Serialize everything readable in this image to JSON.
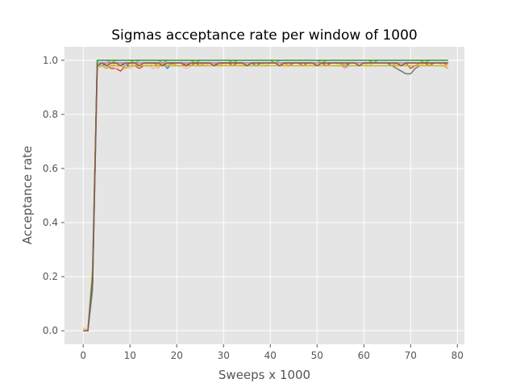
{
  "chart_data": {
    "type": "line",
    "title": "Sigmas acceptance rate per window of 1000",
    "xlabel": "Sweeps x 1000",
    "ylabel": "Acceptance rate",
    "xlim": [
      -4,
      81.5
    ],
    "ylim": [
      -0.05,
      1.05
    ],
    "xticks": [
      "0",
      "10",
      "20",
      "30",
      "40",
      "50",
      "60",
      "70",
      "80"
    ],
    "yticks": [
      "0.0",
      "0.2",
      "0.4",
      "0.6",
      "0.8",
      "1.0"
    ],
    "grid": true,
    "style": "ggplot",
    "colors": [
      "#E24A33",
      "#348ABD",
      "#988ED5",
      "#777777",
      "#FBC15E",
      "#8EBA42",
      "#FFB5B8",
      "#17BECF",
      "#BCBD22",
      "#E377C2",
      "#2CA02C",
      "#8C564B"
    ],
    "x": [
      0,
      1,
      2,
      3,
      4,
      5,
      6,
      7,
      8,
      9,
      10,
      11,
      12,
      13,
      14,
      15,
      16,
      17,
      18,
      19,
      20,
      21,
      22,
      23,
      24,
      25,
      26,
      27,
      28,
      29,
      30,
      31,
      32,
      33,
      34,
      35,
      36,
      37,
      38,
      39,
      40,
      41,
      42,
      43,
      44,
      45,
      46,
      47,
      48,
      49,
      50,
      51,
      52,
      53,
      54,
      55,
      56,
      57,
      58,
      59,
      60,
      61,
      62,
      63,
      64,
      65,
      66,
      67,
      68,
      69,
      70,
      71,
      72,
      73,
      74,
      75,
      76,
      77,
      78
    ],
    "series": [
      {
        "values": [
          0.01,
          0.0,
          0.17,
          0.97,
          0.98,
          0.98,
          0.97,
          0.97,
          0.96,
          0.98,
          0.98,
          0.98,
          0.97,
          0.98,
          0.98,
          0.99,
          0.98,
          0.98,
          0.98,
          0.99,
          0.98,
          0.98,
          0.99,
          0.98,
          0.99,
          0.98,
          0.99,
          0.99,
          0.99,
          0.98,
          0.99,
          0.99,
          0.98,
          0.99,
          0.99,
          0.98,
          0.99,
          0.99,
          0.99,
          0.98,
          0.99,
          0.99,
          0.99,
          0.99,
          0.98,
          0.99,
          0.99,
          0.98,
          0.99,
          0.99,
          0.99,
          0.99,
          0.98,
          0.99,
          0.99,
          0.99,
          0.98,
          0.99,
          0.99,
          0.99,
          0.99,
          0.98,
          0.99,
          0.99,
          0.99,
          0.99,
          0.98,
          0.99,
          0.98,
          0.99,
          0.97,
          0.98,
          0.99,
          0.99,
          0.98,
          0.99,
          0.99,
          0.99,
          0.98
        ]
      },
      {
        "values": [
          0.0,
          0.0,
          0.15,
          0.98,
          0.98,
          0.99,
          0.98,
          0.99,
          0.99,
          0.98,
          0.99,
          0.98,
          0.99,
          0.99,
          0.99,
          0.99,
          0.99,
          0.99,
          0.97,
          0.99,
          0.99,
          0.99,
          0.99,
          0.99,
          0.99,
          0.99,
          0.98,
          0.99,
          0.99,
          0.99,
          0.99,
          0.99,
          0.99,
          0.99,
          0.99,
          0.99,
          0.99,
          0.98,
          0.99,
          0.99,
          0.99,
          0.99,
          0.99,
          0.99,
          0.99,
          0.99,
          0.99,
          0.99,
          0.99,
          0.99,
          0.99,
          0.99,
          0.99,
          0.99,
          0.99,
          0.99,
          0.97,
          0.99,
          0.99,
          0.99,
          0.99,
          0.99,
          0.99,
          0.99,
          0.99,
          0.99,
          0.99,
          0.99,
          0.99,
          0.99,
          0.99,
          0.99,
          0.98,
          0.99,
          0.99,
          0.99,
          0.99,
          0.99,
          0.99
        ]
      },
      {
        "values": [
          0.0,
          0.0,
          0.22,
          0.99,
          0.99,
          0.99,
          0.99,
          0.99,
          0.99,
          0.99,
          0.99,
          0.99,
          0.99,
          0.99,
          0.99,
          0.99,
          0.99,
          0.99,
          0.99,
          0.99,
          0.99,
          0.99,
          0.99,
          0.99,
          0.99,
          0.99,
          0.99,
          0.99,
          0.99,
          0.99,
          0.99,
          0.99,
          0.99,
          0.99,
          0.99,
          0.99,
          0.99,
          0.99,
          0.99,
          0.99,
          0.99,
          0.99,
          0.99,
          0.99,
          0.99,
          0.99,
          0.99,
          0.99,
          0.99,
          0.99,
          0.99,
          0.99,
          0.99,
          0.99,
          0.99,
          0.99,
          0.99,
          0.99,
          0.99,
          0.99,
          0.99,
          0.99,
          0.99,
          0.99,
          0.99,
          0.99,
          0.99,
          0.99,
          0.99,
          0.99,
          0.99,
          0.99,
          0.99,
          0.99,
          0.99,
          0.99,
          0.99,
          0.99,
          0.99
        ]
      },
      {
        "values": [
          0.0,
          0.0,
          0.2,
          0.99,
          0.99,
          0.99,
          0.99,
          0.99,
          0.99,
          0.99,
          0.99,
          0.99,
          0.99,
          0.99,
          0.99,
          0.99,
          0.99,
          0.99,
          0.99,
          0.99,
          0.99,
          0.99,
          0.99,
          0.99,
          0.99,
          0.99,
          0.99,
          0.99,
          0.99,
          0.99,
          0.99,
          0.99,
          0.99,
          0.99,
          0.99,
          0.99,
          0.99,
          0.98,
          0.99,
          0.99,
          0.99,
          0.99,
          0.99,
          0.99,
          0.99,
          0.99,
          0.99,
          0.99,
          0.99,
          0.99,
          0.99,
          0.99,
          0.99,
          0.99,
          0.99,
          0.99,
          0.99,
          0.99,
          0.99,
          0.99,
          0.99,
          0.99,
          0.99,
          0.99,
          0.99,
          0.99,
          0.98,
          0.97,
          0.96,
          0.95,
          0.95,
          0.97,
          0.98,
          0.99,
          0.99,
          0.99,
          0.99,
          0.99,
          0.99
        ]
      },
      {
        "values": [
          0.01,
          0.0,
          0.18,
          0.98,
          0.99,
          0.99,
          0.98,
          0.99,
          0.98,
          0.99,
          0.99,
          0.98,
          0.99,
          0.99,
          0.98,
          0.99,
          0.97,
          0.99,
          0.99,
          0.98,
          0.99,
          0.99,
          0.98,
          0.99,
          0.99,
          0.99,
          0.98,
          0.99,
          0.99,
          0.99,
          0.98,
          0.99,
          0.99,
          0.99,
          0.98,
          0.99,
          0.99,
          0.99,
          0.99,
          0.98,
          0.99,
          0.99,
          0.99,
          0.98,
          0.99,
          0.99,
          0.99,
          0.99,
          0.99,
          0.98,
          0.99,
          0.99,
          0.99,
          0.99,
          0.99,
          0.98,
          0.99,
          0.99,
          0.99,
          0.99,
          0.99,
          0.98,
          0.99,
          0.99,
          0.99,
          0.99,
          0.99,
          0.98,
          0.99,
          0.99,
          0.99,
          0.99,
          0.98,
          0.99,
          0.99,
          0.99,
          0.99,
          0.98,
          0.98
        ]
      },
      {
        "values": [
          0.0,
          0.0,
          0.21,
          1.0,
          1.0,
          1.0,
          0.99,
          1.0,
          1.0,
          1.0,
          1.0,
          0.99,
          1.0,
          1.0,
          1.0,
          1.0,
          1.0,
          0.99,
          1.0,
          1.0,
          1.0,
          1.0,
          1.0,
          1.0,
          0.99,
          1.0,
          1.0,
          1.0,
          1.0,
          1.0,
          1.0,
          1.0,
          0.99,
          1.0,
          1.0,
          1.0,
          1.0,
          1.0,
          1.0,
          1.0,
          1.0,
          0.99,
          1.0,
          1.0,
          1.0,
          1.0,
          1.0,
          1.0,
          1.0,
          1.0,
          1.0,
          0.99,
          1.0,
          1.0,
          1.0,
          1.0,
          1.0,
          1.0,
          1.0,
          1.0,
          1.0,
          1.0,
          0.99,
          1.0,
          1.0,
          1.0,
          1.0,
          1.0,
          1.0,
          1.0,
          1.0,
          1.0,
          1.0,
          0.99,
          1.0,
          1.0,
          1.0,
          1.0,
          1.0
        ]
      },
      {
        "values": [
          0.0,
          0.0,
          0.19,
          0.97,
          0.98,
          0.98,
          0.98,
          0.97,
          0.98,
          0.98,
          0.97,
          0.98,
          0.98,
          0.98,
          0.98,
          0.97,
          0.98,
          0.98,
          0.98,
          0.98,
          0.98,
          0.98,
          0.97,
          0.98,
          0.98,
          0.98,
          0.98,
          0.98,
          0.98,
          0.98,
          0.98,
          0.98,
          0.98,
          0.98,
          0.98,
          0.98,
          0.98,
          0.98,
          0.98,
          0.98,
          0.98,
          0.98,
          0.98,
          0.98,
          0.98,
          0.98,
          0.98,
          0.98,
          0.98,
          0.98,
          0.98,
          0.98,
          0.98,
          0.98,
          0.98,
          0.98,
          0.97,
          0.98,
          0.98,
          0.98,
          0.98,
          0.98,
          0.98,
          0.98,
          0.98,
          0.98,
          0.98,
          0.98,
          0.98,
          0.98,
          0.98,
          0.98,
          0.98,
          0.98,
          0.98,
          0.98,
          0.98,
          0.98,
          0.98
        ]
      },
      {
        "values": [
          0.0,
          0.0,
          0.16,
          0.99,
          0.99,
          0.99,
          0.99,
          0.99,
          0.99,
          0.99,
          0.99,
          0.99,
          0.99,
          0.99,
          0.99,
          0.99,
          0.99,
          0.99,
          0.99,
          0.99,
          0.99,
          0.99,
          0.99,
          0.99,
          0.99,
          0.99,
          0.99,
          0.99,
          0.99,
          0.99,
          0.99,
          0.99,
          0.99,
          0.99,
          0.99,
          0.99,
          0.99,
          0.99,
          0.99,
          0.99,
          0.99,
          0.99,
          0.99,
          0.99,
          0.99,
          0.99,
          0.99,
          0.99,
          0.99,
          0.99,
          0.99,
          0.99,
          0.99,
          0.99,
          0.99,
          0.99,
          0.99,
          0.99,
          0.99,
          0.99,
          0.99,
          0.99,
          0.99,
          0.99,
          0.99,
          0.99,
          0.99,
          0.99,
          0.99,
          0.99,
          0.99,
          0.99,
          0.99,
          0.99,
          0.99,
          0.99,
          0.99,
          0.99,
          0.99
        ]
      },
      {
        "values": [
          0.0,
          0.0,
          0.23,
          0.98,
          0.98,
          0.97,
          0.98,
          0.98,
          0.98,
          0.97,
          0.98,
          0.98,
          0.98,
          0.98,
          0.98,
          0.98,
          0.98,
          0.98,
          0.98,
          0.98,
          0.98,
          0.98,
          0.98,
          0.98,
          0.98,
          0.98,
          0.98,
          0.98,
          0.98,
          0.98,
          0.98,
          0.98,
          0.98,
          0.98,
          0.98,
          0.98,
          0.98,
          0.98,
          0.98,
          0.98,
          0.98,
          0.98,
          0.98,
          0.98,
          0.98,
          0.98,
          0.98,
          0.98,
          0.98,
          0.98,
          0.98,
          0.98,
          0.98,
          0.98,
          0.98,
          0.98,
          0.98,
          0.98,
          0.98,
          0.98,
          0.98,
          0.98,
          0.98,
          0.98,
          0.98,
          0.98,
          0.98,
          0.98,
          0.98,
          0.98,
          0.98,
          0.98,
          0.98,
          0.98,
          0.98,
          0.98,
          0.98,
          0.98,
          0.97
        ]
      },
      {
        "values": [
          0.0,
          0.0,
          0.17,
          0.99,
          0.99,
          0.99,
          0.99,
          0.99,
          0.99,
          0.99,
          0.99,
          0.99,
          0.99,
          0.99,
          0.99,
          0.99,
          0.99,
          0.99,
          0.99,
          0.99,
          0.99,
          0.99,
          0.99,
          0.99,
          0.99,
          0.99,
          0.99,
          0.99,
          0.99,
          0.99,
          0.99,
          0.99,
          0.99,
          0.99,
          0.99,
          0.99,
          0.99,
          0.99,
          0.99,
          0.99,
          0.99,
          0.99,
          0.99,
          0.99,
          0.99,
          0.99,
          0.99,
          0.99,
          0.99,
          0.99,
          0.99,
          0.99,
          0.99,
          0.99,
          0.99,
          0.99,
          0.99,
          0.99,
          0.99,
          0.99,
          0.99,
          0.99,
          0.99,
          0.99,
          0.99,
          0.99,
          0.99,
          0.99,
          0.99,
          0.99,
          0.99,
          0.99,
          0.99,
          0.99,
          0.99,
          0.99,
          0.99,
          0.99,
          0.99
        ]
      },
      {
        "values": [
          0.0,
          0.0,
          0.2,
          1.0,
          1.0,
          1.0,
          1.0,
          1.0,
          1.0,
          1.0,
          1.0,
          1.0,
          1.0,
          1.0,
          1.0,
          1.0,
          1.0,
          1.0,
          1.0,
          1.0,
          1.0,
          1.0,
          1.0,
          1.0,
          1.0,
          1.0,
          1.0,
          1.0,
          1.0,
          1.0,
          1.0,
          1.0,
          1.0,
          1.0,
          1.0,
          1.0,
          1.0,
          1.0,
          1.0,
          1.0,
          1.0,
          1.0,
          1.0,
          1.0,
          1.0,
          1.0,
          1.0,
          1.0,
          1.0,
          1.0,
          1.0,
          1.0,
          1.0,
          1.0,
          1.0,
          1.0,
          1.0,
          1.0,
          1.0,
          1.0,
          1.0,
          1.0,
          1.0,
          1.0,
          1.0,
          1.0,
          1.0,
          1.0,
          1.0,
          1.0,
          1.0,
          1.0,
          1.0,
          1.0,
          1.0,
          1.0,
          1.0,
          1.0,
          1.0
        ]
      },
      {
        "values": [
          0.0,
          0.0,
          0.18,
          0.98,
          0.99,
          0.98,
          0.99,
          0.99,
          0.98,
          0.99,
          0.99,
          0.99,
          0.98,
          0.99,
          0.99,
          0.99,
          0.99,
          0.98,
          0.99,
          0.99,
          0.99,
          0.99,
          0.98,
          0.99,
          0.99,
          0.99,
          0.99,
          0.99,
          0.98,
          0.99,
          0.99,
          0.99,
          0.99,
          0.99,
          0.99,
          0.98,
          0.99,
          0.99,
          0.99,
          0.99,
          0.99,
          0.99,
          0.98,
          0.99,
          0.99,
          0.99,
          0.99,
          0.99,
          0.99,
          0.99,
          0.98,
          0.99,
          0.99,
          0.99,
          0.99,
          0.99,
          0.99,
          0.99,
          0.99,
          0.98,
          0.99,
          0.99,
          0.99,
          0.99,
          0.99,
          0.99,
          0.99,
          0.99,
          0.98,
          0.99,
          0.99,
          0.99,
          0.99,
          0.99,
          0.99,
          0.99,
          0.99,
          0.99,
          0.99
        ]
      }
    ]
  }
}
